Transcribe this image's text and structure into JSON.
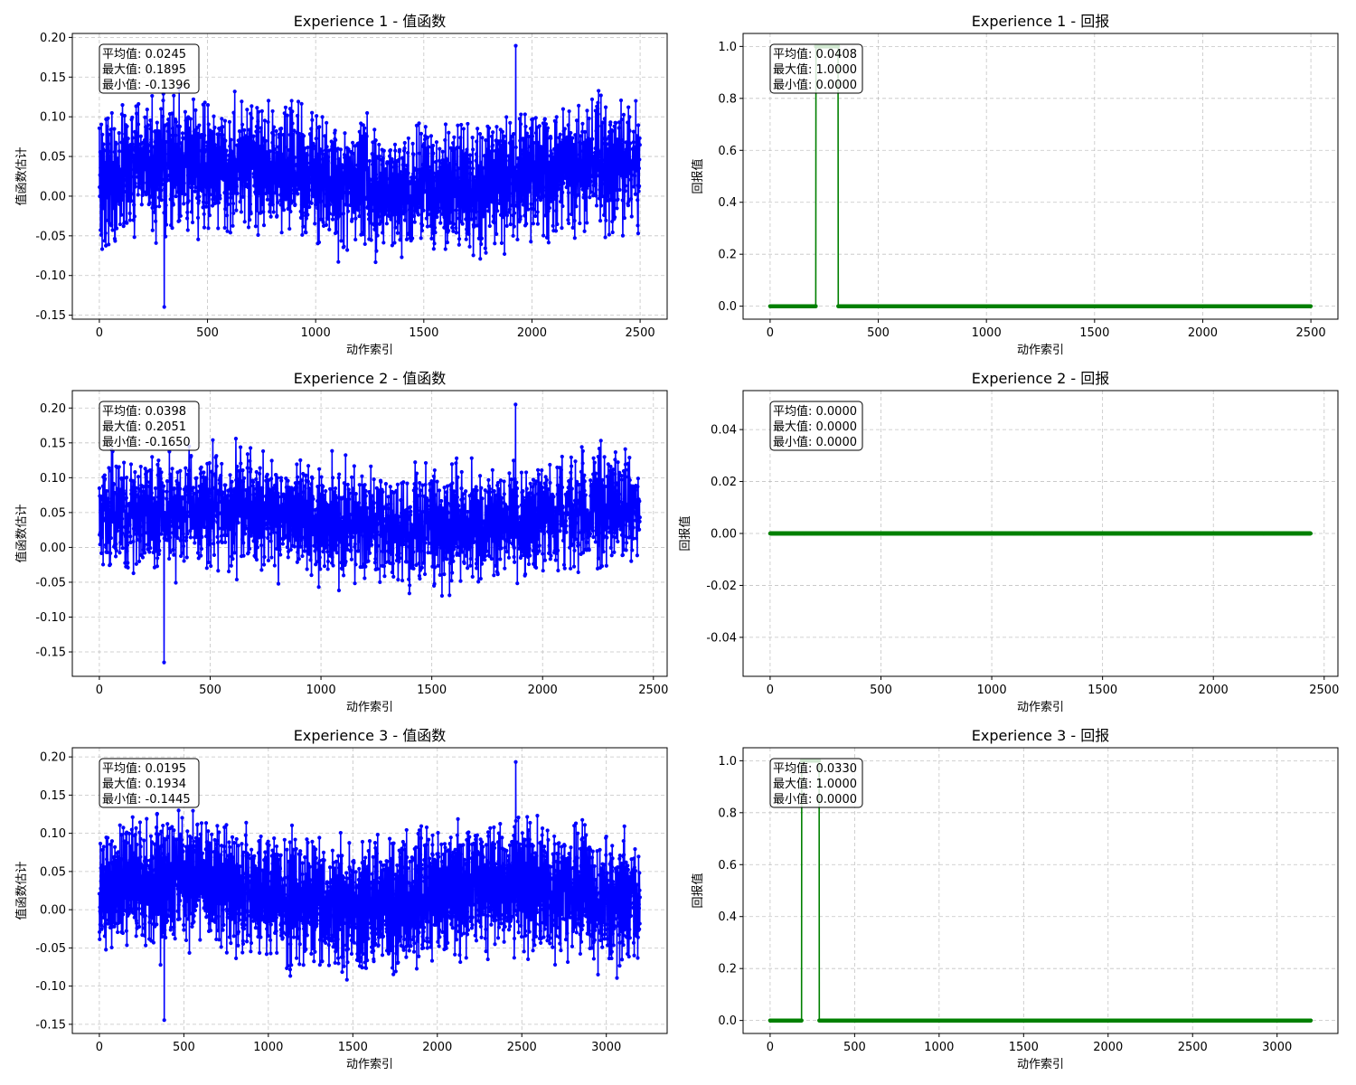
{
  "colors": {
    "value_line": "#0000ff",
    "reward_line": "#008000",
    "grid": "#b0b0b0",
    "axes": "#000000"
  },
  "chart_data": [
    {
      "id": "exp1-value",
      "type": "line",
      "title": "Experience 1 - 值函数",
      "xlabel": "动作索引",
      "ylabel": "值函数估计",
      "xlim": [
        -125,
        2625
      ],
      "ylim": [
        -0.155,
        0.205
      ],
      "x_ticks": [
        0,
        500,
        1000,
        1500,
        2000,
        2500
      ],
      "y_ticks": [
        -0.15,
        -0.1,
        -0.05,
        0.0,
        0.05,
        0.1,
        0.15,
        0.2
      ],
      "grid": true,
      "series": [
        {
          "color": "#0000ff",
          "marker": "o",
          "n_points": 2500,
          "mean": 0.0245,
          "max": 0.1895,
          "min": -0.1396
        }
      ],
      "stats": [
        "平均值: 0.0245",
        "最大值: 0.1895",
        "最小值: -0.1396"
      ],
      "stats_position": "top-left"
    },
    {
      "id": "exp1-reward",
      "type": "line",
      "title": "Experience 1 - 回报",
      "xlabel": "动作索引",
      "ylabel": "回报值",
      "xlim": [
        -125,
        2625
      ],
      "ylim": [
        -0.05,
        1.05
      ],
      "x_ticks": [
        0,
        500,
        1000,
        1500,
        2000,
        2500
      ],
      "y_ticks": [
        0.0,
        0.2,
        0.4,
        0.6,
        0.8,
        1.0
      ],
      "grid": true,
      "series": [
        {
          "color": "#008000",
          "marker": "o",
          "n_points": 2500,
          "segments": [
            [
              0,
              210,
              0
            ],
            [
              212,
              314,
              1
            ],
            [
              316,
              2499,
              0
            ]
          ]
        }
      ],
      "stats": [
        "平均值: 0.0408",
        "最大值: 1.0000",
        "最小值: 0.0000"
      ],
      "stats_position": "top-left"
    },
    {
      "id": "exp2-value",
      "type": "line",
      "title": "Experience 2 - 值函数",
      "xlabel": "动作索引",
      "ylabel": "值函数估计",
      "xlim": [
        -122,
        2562
      ],
      "ylim": [
        -0.185,
        0.225
      ],
      "x_ticks": [
        0,
        500,
        1000,
        1500,
        2000,
        2500
      ],
      "y_ticks": [
        -0.15,
        -0.1,
        -0.05,
        0.0,
        0.05,
        0.1,
        0.15,
        0.2
      ],
      "grid": true,
      "series": [
        {
          "color": "#0000ff",
          "marker": "o",
          "n_points": 2440,
          "mean": 0.0398,
          "max": 0.2051,
          "min": -0.165
        }
      ],
      "stats": [
        "平均值: 0.0398",
        "最大值: 0.2051",
        "最小值: -0.1650"
      ],
      "stats_position": "top-left"
    },
    {
      "id": "exp2-reward",
      "type": "line",
      "title": "Experience 2 - 回报",
      "xlabel": "动作索引",
      "ylabel": "回报值",
      "xlim": [
        -122,
        2562
      ],
      "ylim": [
        -0.055,
        0.055
      ],
      "x_ticks": [
        0,
        500,
        1000,
        1500,
        2000,
        2500
      ],
      "y_ticks": [
        -0.04,
        -0.02,
        0.0,
        0.02,
        0.04
      ],
      "grid": true,
      "series": [
        {
          "color": "#008000",
          "marker": "o",
          "n_points": 2440,
          "segments": [
            [
              0,
              2439,
              0
            ]
          ]
        }
      ],
      "stats": [
        "平均值: 0.0000",
        "最大值: 0.0000",
        "最小值: 0.0000"
      ],
      "stats_position": "top-left"
    },
    {
      "id": "exp3-value",
      "type": "line",
      "title": "Experience 3 - 值函数",
      "xlabel": "动作索引",
      "ylabel": "值函数估计",
      "xlim": [
        -160,
        3360
      ],
      "ylim": [
        -0.162,
        0.212
      ],
      "x_ticks": [
        0,
        500,
        1000,
        1500,
        2000,
        2500,
        3000
      ],
      "y_ticks": [
        -0.15,
        -0.1,
        -0.05,
        0.0,
        0.05,
        0.1,
        0.15,
        0.2
      ],
      "grid": true,
      "series": [
        {
          "color": "#0000ff",
          "marker": "o",
          "n_points": 3200,
          "mean": 0.0195,
          "max": 0.1934,
          "min": -0.1445
        }
      ],
      "stats": [
        "平均值: 0.0195",
        "最大值: 0.1934",
        "最小值: -0.1445"
      ],
      "stats_position": "top-left"
    },
    {
      "id": "exp3-reward",
      "type": "line",
      "title": "Experience 3 - 回报",
      "xlabel": "动作索引",
      "ylabel": "回报值",
      "xlim": [
        -160,
        3360
      ],
      "ylim": [
        -0.05,
        1.05
      ],
      "x_ticks": [
        0,
        500,
        1000,
        1500,
        2000,
        2500,
        3000
      ],
      "y_ticks": [
        0.0,
        0.2,
        0.4,
        0.6,
        0.8,
        1.0
      ],
      "grid": true,
      "series": [
        {
          "color": "#008000",
          "marker": "o",
          "n_points": 3200,
          "segments": [
            [
              0,
              185,
              0
            ],
            [
              187,
              290,
              1
            ],
            [
              292,
              3199,
              0
            ]
          ]
        }
      ],
      "stats": [
        "平均值: 0.0330",
        "最大值: 1.0000",
        "最小值: 0.0000"
      ],
      "stats_position": "top-left"
    }
  ]
}
